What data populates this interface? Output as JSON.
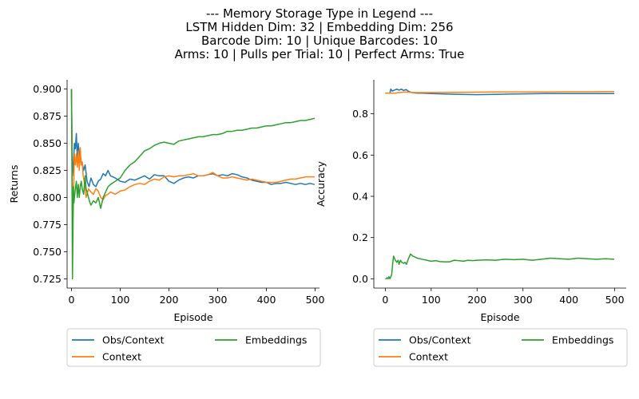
{
  "figure": {
    "title_lines": [
      "--- Memory Storage Type in Legend ---",
      "LSTM Hidden Dim: 32 | Embedding Dim: 256",
      "Barcode Dim: 10 | Unique Barcodes: 10",
      "Arms: 10 | Pulls per Trial: 10 | Perfect Arms: True"
    ]
  },
  "chart_data": [
    {
      "type": "line",
      "xlabel": "Episode",
      "ylabel": "Returns",
      "xlim": [
        -9,
        509
      ],
      "ylim": [
        0.7165,
        0.9085
      ],
      "xticks": [
        0,
        100,
        200,
        300,
        400,
        500
      ],
      "yticks": [
        0.725,
        0.75,
        0.775,
        0.8,
        0.825,
        0.85,
        0.875,
        0.9
      ],
      "ytick_labels": [
        "0.725",
        "0.750",
        "0.775",
        "0.800",
        "0.825",
        "0.850",
        "0.875",
        "0.900"
      ],
      "grid": false,
      "legend": {
        "placement": "below",
        "columns": 2
      },
      "series": [
        {
          "name": "Obs/Context",
          "color": "#1f77b4",
          "x": [
            0,
            2,
            4,
            6,
            8,
            10,
            12,
            14,
            16,
            18,
            20,
            22,
            25,
            28,
            32,
            36,
            40,
            45,
            50,
            55,
            60,
            65,
            70,
            75,
            80,
            90,
            100,
            110,
            120,
            130,
            140,
            150,
            160,
            170,
            180,
            190,
            200,
            210,
            220,
            230,
            240,
            250,
            260,
            270,
            280,
            290,
            300,
            310,
            320,
            330,
            340,
            350,
            360,
            370,
            380,
            390,
            400,
            410,
            420,
            430,
            440,
            450,
            460,
            470,
            480,
            490,
            499
          ],
          "y": [
            0.9,
            0.82,
            0.83,
            0.85,
            0.845,
            0.859,
            0.835,
            0.85,
            0.838,
            0.842,
            0.83,
            0.832,
            0.825,
            0.83,
            0.815,
            0.81,
            0.818,
            0.812,
            0.81,
            0.815,
            0.817,
            0.822,
            0.82,
            0.825,
            0.82,
            0.818,
            0.815,
            0.814,
            0.817,
            0.816,
            0.818,
            0.82,
            0.817,
            0.821,
            0.82,
            0.82,
            0.815,
            0.813,
            0.816,
            0.818,
            0.819,
            0.818,
            0.82,
            0.82,
            0.821,
            0.822,
            0.82,
            0.821,
            0.82,
            0.822,
            0.821,
            0.819,
            0.818,
            0.816,
            0.815,
            0.814,
            0.814,
            0.812,
            0.813,
            0.813,
            0.814,
            0.813,
            0.812,
            0.813,
            0.812,
            0.813,
            0.812
          ]
        },
        {
          "name": "Context",
          "color": "#ff7f0e",
          "x": [
            0,
            1,
            2,
            3,
            4,
            5,
            6,
            7,
            8,
            10,
            12,
            14,
            16,
            18,
            20,
            22,
            24,
            26,
            28,
            30,
            35,
            40,
            45,
            50,
            55,
            60,
            65,
            70,
            75,
            80,
            90,
            100,
            110,
            120,
            130,
            140,
            150,
            160,
            170,
            180,
            190,
            200,
            210,
            220,
            230,
            240,
            250,
            260,
            270,
            280,
            290,
            300,
            310,
            320,
            330,
            340,
            350,
            360,
            370,
            380,
            390,
            400,
            410,
            420,
            430,
            440,
            450,
            460,
            470,
            480,
            490,
            499
          ],
          "y": [
            0.9,
            0.85,
            0.767,
            0.78,
            0.8,
            0.82,
            0.84,
            0.835,
            0.83,
            0.84,
            0.828,
            0.843,
            0.825,
            0.846,
            0.83,
            0.833,
            0.82,
            0.815,
            0.81,
            0.8,
            0.808,
            0.805,
            0.803,
            0.808,
            0.806,
            0.8,
            0.798,
            0.802,
            0.803,
            0.805,
            0.803,
            0.806,
            0.807,
            0.81,
            0.812,
            0.813,
            0.812,
            0.815,
            0.817,
            0.816,
            0.819,
            0.82,
            0.819,
            0.82,
            0.82,
            0.821,
            0.822,
            0.82,
            0.82,
            0.821,
            0.823,
            0.82,
            0.818,
            0.818,
            0.819,
            0.818,
            0.817,
            0.816,
            0.817,
            0.816,
            0.815,
            0.814,
            0.814,
            0.814,
            0.815,
            0.816,
            0.817,
            0.817,
            0.818,
            0.819,
            0.819,
            0.819
          ]
        },
        {
          "name": "Embeddings",
          "color": "#2ca02c",
          "x": [
            0,
            1,
            2,
            3,
            4,
            5,
            6,
            8,
            10,
            12,
            14,
            16,
            18,
            20,
            22,
            25,
            28,
            30,
            32,
            35,
            38,
            40,
            45,
            50,
            55,
            60,
            65,
            70,
            75,
            80,
            90,
            100,
            110,
            120,
            130,
            140,
            150,
            160,
            170,
            180,
            190,
            200,
            210,
            220,
            230,
            240,
            250,
            260,
            270,
            280,
            290,
            300,
            310,
            320,
            330,
            340,
            350,
            360,
            370,
            380,
            390,
            400,
            410,
            420,
            430,
            440,
            450,
            460,
            470,
            480,
            490,
            499
          ],
          "y": [
            0.9,
            0.82,
            0.725,
            0.77,
            0.81,
            0.795,
            0.8,
            0.808,
            0.815,
            0.8,
            0.812,
            0.8,
            0.81,
            0.815,
            0.808,
            0.803,
            0.82,
            0.808,
            0.805,
            0.8,
            0.795,
            0.793,
            0.797,
            0.795,
            0.8,
            0.79,
            0.8,
            0.805,
            0.81,
            0.812,
            0.815,
            0.818,
            0.825,
            0.83,
            0.833,
            0.838,
            0.843,
            0.845,
            0.848,
            0.85,
            0.851,
            0.85,
            0.849,
            0.852,
            0.853,
            0.854,
            0.855,
            0.856,
            0.856,
            0.857,
            0.858,
            0.858,
            0.859,
            0.861,
            0.861,
            0.862,
            0.862,
            0.863,
            0.864,
            0.864,
            0.865,
            0.866,
            0.866,
            0.867,
            0.868,
            0.869,
            0.869,
            0.87,
            0.871,
            0.871,
            0.872,
            0.873
          ]
        }
      ]
    },
    {
      "type": "line",
      "xlabel": "Episode",
      "ylabel": "Accuracy",
      "xlim": [
        -25,
        525
      ],
      "ylim": [
        -0.045,
        0.965
      ],
      "xticks": [
        0,
        100,
        200,
        300,
        400,
        500
      ],
      "yticks": [
        0.0,
        0.2,
        0.4,
        0.6,
        0.8
      ],
      "ytick_labels": [
        "0.0",
        "0.2",
        "0.4",
        "0.6",
        "0.8"
      ],
      "grid": false,
      "legend": {
        "placement": "below",
        "columns": 2
      },
      "series": [
        {
          "name": "Obs/Context",
          "color": "#1f77b4",
          "x": [
            0,
            5,
            10,
            12,
            15,
            20,
            25,
            30,
            35,
            40,
            45,
            50,
            55,
            60,
            70,
            80,
            100,
            120,
            150,
            200,
            250,
            300,
            350,
            400,
            450,
            499
          ],
          "y": [
            0.9,
            0.9,
            0.9,
            0.92,
            0.91,
            0.915,
            0.92,
            0.915,
            0.92,
            0.913,
            0.918,
            0.91,
            0.905,
            0.902,
            0.9,
            0.9,
            0.898,
            0.897,
            0.895,
            0.893,
            0.895,
            0.897,
            0.898,
            0.898,
            0.898,
            0.898
          ]
        },
        {
          "name": "Context",
          "color": "#ff7f0e",
          "x": [
            0,
            10,
            20,
            30,
            40,
            50,
            60,
            80,
            100,
            150,
            200,
            250,
            300,
            350,
            400,
            450,
            499
          ],
          "y": [
            0.9,
            0.9,
            0.9,
            0.903,
            0.905,
            0.905,
            0.903,
            0.903,
            0.903,
            0.904,
            0.905,
            0.906,
            0.906,
            0.906,
            0.907,
            0.907,
            0.908
          ]
        },
        {
          "name": "Embeddings",
          "color": "#2ca02c",
          "x": [
            0,
            2,
            4,
            6,
            8,
            10,
            12,
            14,
            16,
            18,
            20,
            22,
            25,
            28,
            30,
            33,
            36,
            40,
            43,
            46,
            50,
            55,
            60,
            65,
            70,
            80,
            90,
            100,
            110,
            120,
            130,
            140,
            150,
            160,
            170,
            180,
            190,
            200,
            220,
            240,
            260,
            280,
            300,
            320,
            340,
            360,
            380,
            400,
            420,
            440,
            460,
            480,
            499
          ],
          "y": [
            0.0,
            0.0,
            0.005,
            0.0,
            0.01,
            0.0,
            0.01,
            0.02,
            0.07,
            0.11,
            0.1,
            0.09,
            0.08,
            0.09,
            0.07,
            0.09,
            0.08,
            0.075,
            0.08,
            0.07,
            0.095,
            0.12,
            0.11,
            0.105,
            0.1,
            0.095,
            0.09,
            0.085,
            0.088,
            0.083,
            0.082,
            0.082,
            0.09,
            0.088,
            0.085,
            0.09,
            0.088,
            0.09,
            0.092,
            0.09,
            0.095,
            0.093,
            0.095,
            0.09,
            0.095,
            0.1,
            0.097,
            0.095,
            0.1,
            0.097,
            0.095,
            0.097,
            0.095
          ]
        }
      ]
    }
  ]
}
